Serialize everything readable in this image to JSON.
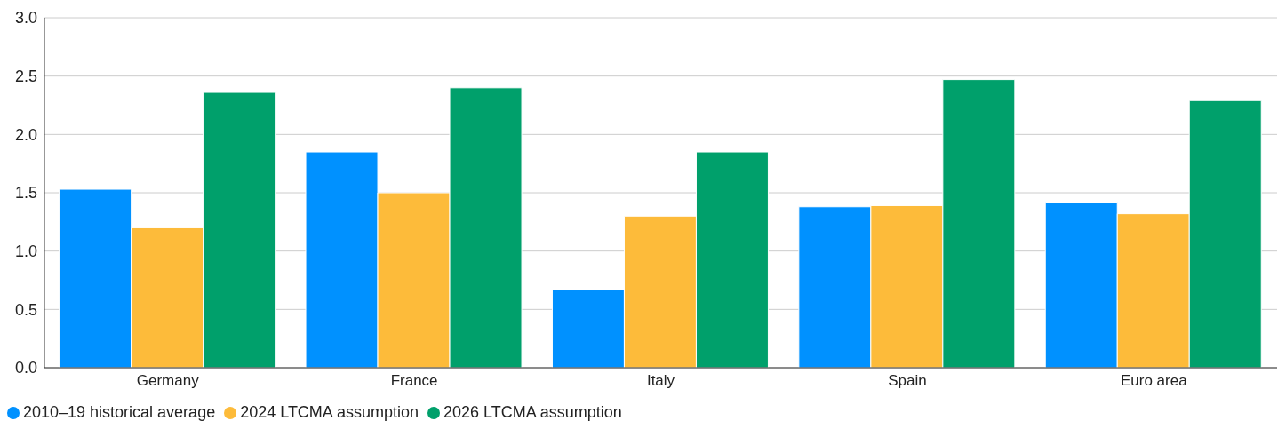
{
  "chart_data": {
    "type": "bar",
    "categories": [
      "Germany",
      "France",
      "Italy",
      "Spain",
      "Euro area"
    ],
    "series": [
      {
        "name": "2010–19 historical average",
        "color": "#0091ff",
        "values": [
          1.53,
          1.85,
          0.67,
          1.38,
          1.42
        ]
      },
      {
        "name": "2024 LTCMA assumption",
        "color": "#fdbb3a",
        "values": [
          1.2,
          1.5,
          1.3,
          1.39,
          1.32
        ]
      },
      {
        "name": "2026 LTCMA assumption",
        "color": "#00a06b",
        "values": [
          2.36,
          2.4,
          1.85,
          2.47,
          2.29
        ]
      }
    ],
    "ylim": [
      0,
      3
    ],
    "yticks": [
      {
        "value": 0,
        "label": "0.0"
      },
      0.5,
      {
        "value": 1,
        "label": "1.0"
      },
      1.5,
      {
        "value": 2,
        "label": "2.0"
      },
      2.5,
      {
        "value": 3,
        "label": "3.0"
      }
    ],
    "grid": "y",
    "legend": "bottom left"
  }
}
